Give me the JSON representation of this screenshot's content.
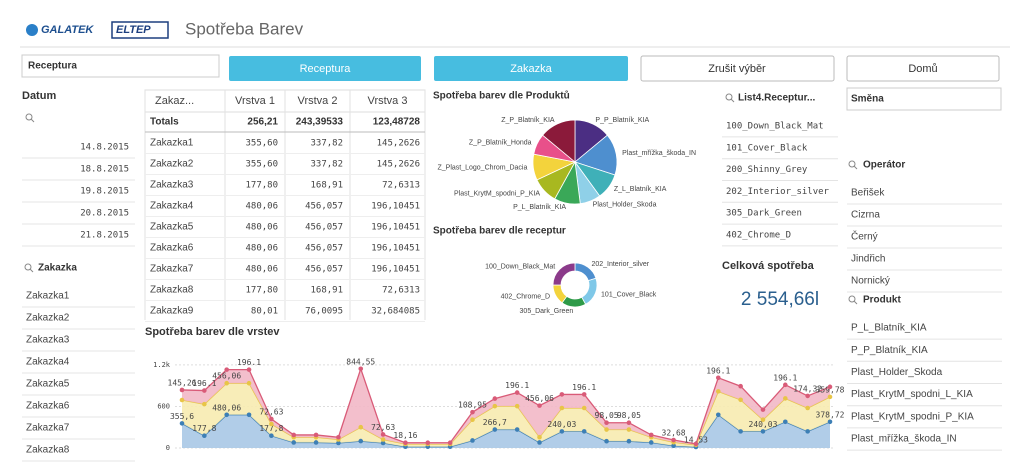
{
  "header": {
    "logos": [
      "GALATEK",
      "ELTEP"
    ],
    "title": "Spotřeba Barev"
  },
  "filters": {
    "field": "Receptura",
    "buttons": [
      "Receptura",
      "Zakazka",
      "Zrušit výběr",
      "Domů"
    ]
  },
  "datum": {
    "title": "Datum",
    "items": [
      "14.8.2015",
      "18.8.2015",
      "19.8.2015",
      "20.8.2015",
      "21.8.2015"
    ]
  },
  "zakazka": {
    "title": "Zakazka",
    "items": [
      "Zakazka1",
      "Zakazka2",
      "Zakazka3",
      "Zakazka4",
      "Zakazka5",
      "Zakazka6",
      "Zakazka7",
      "Zakazka8"
    ]
  },
  "table": {
    "columns": [
      "Zakaz...",
      "Vrstva 1",
      "Vrstva 2",
      "Vrstva 3"
    ],
    "totals": [
      "Totals",
      "256,21",
      "243,39533",
      "123,48728"
    ],
    "rows": [
      [
        "Zakazka1",
        "355,60",
        "337,82",
        "145,2626"
      ],
      [
        "Zakazka2",
        "355,60",
        "337,82",
        "145,2626"
      ],
      [
        "Zakazka3",
        "177,80",
        "168,91",
        "72,6313"
      ],
      [
        "Zakazka4",
        "480,06",
        "456,057",
        "196,10451"
      ],
      [
        "Zakazka5",
        "480,06",
        "456,057",
        "196,10451"
      ],
      [
        "Zakazka6",
        "480,06",
        "456,057",
        "196,10451"
      ],
      [
        "Zakazka7",
        "480,06",
        "456,057",
        "196,10451"
      ],
      [
        "Zakazka8",
        "177,80",
        "168,91",
        "72,6313"
      ],
      [
        "Zakazka9",
        "80,01",
        "76,0095",
        "32,684085"
      ]
    ]
  },
  "list4": {
    "title": "List4.Receptur...",
    "items": [
      "100_Down_Black_Mat",
      "101_Cover_Black",
      "200_Shinny_Grey",
      "202_Interior_silver",
      "305_Dark_Green",
      "402_Chrome_D"
    ]
  },
  "total": {
    "title": "Celková spotřeba",
    "value": "2 554,66l"
  },
  "smena": {
    "title": "Směna"
  },
  "operator": {
    "title": "Operátor",
    "items": [
      "Beřišek",
      "Cizrna",
      "Černý",
      "Jindřich",
      "Nornický"
    ]
  },
  "produkt": {
    "title": "Produkt",
    "items": [
      "P_L_Blatník_KIA",
      "P_P_Blatník_KIA",
      "Plast_Holder_Skoda",
      "Plast_KrytM_spodni_L_KIA",
      "Plast_KrytM_spodni_P_KIA",
      "Plast_mřížka_škoda_IN"
    ]
  },
  "chart_data": [
    {
      "type": "pie",
      "title": "Spotřeba barev dle Produktů",
      "categories": [
        "P_P_Blatník_KIA",
        "Plast_mřížka_škoda_IN",
        "Z_L_Blatník_KIA",
        "Plast_Holder_Skoda",
        "P_L_Blatník_KIA",
        "Plast_KrytM_spodni_P_KIA",
        "Z_Plast_Logo_Chrom_Dacia",
        "Z_P_Blatník_Honda",
        "Z_P_Blatník_KIA"
      ],
      "values": [
        14,
        16,
        10,
        8,
        10,
        10,
        10,
        8,
        14
      ],
      "colors": [
        "#4b2e83",
        "#4e8fcf",
        "#3fb0b8",
        "#8fd0e8",
        "#3aa858",
        "#a8b820",
        "#f3d33c",
        "#e8508a",
        "#8b1a3a"
      ]
    },
    {
      "type": "donut",
      "title": "Spotřeba barev dle receptur",
      "categories": [
        "202_Interior_silver",
        "101_Cover_Black",
        "305_Dark_Green",
        "402_Chrome_D",
        "100_Down_Black_Mat"
      ],
      "values": [
        20,
        22,
        18,
        15,
        25
      ],
      "colors": [
        "#4e8fcf",
        "#7fc8e8",
        "#2e9a48",
        "#f3d33c",
        "#8b3a8a"
      ]
    },
    {
      "type": "stacked-area",
      "title": "Spotřeba barev dle vrstev",
      "ylim": [
        0,
        1300
      ],
      "yticks": [
        0,
        600,
        {
          "value": 1200,
          "label": "1.2k"
        }
      ],
      "grid": true,
      "series": [
        {
          "color": "#3d7fb5",
          "fill": "#a9c8e6",
          "values": [
            355.6,
            177.8,
            480.06,
            480.06,
            177.8,
            80,
            80,
            72.63,
            100,
            72.63,
            18.16,
            18.16,
            18.16,
            108.95,
            266.7,
            266.7,
            80,
            240.03,
            240.03,
            98.05,
            98.05,
            80,
            32.68,
            14.53,
            480.06,
            240.03,
            240.03,
            378.72,
            240.03,
            378.72
          ],
          "value_labels": [
            "355,6",
            "177,8",
            "480,06",
            null,
            "177,8",
            null,
            null,
            null,
            null,
            null,
            null,
            null,
            null,
            null,
            "266,7",
            null,
            null,
            "240,03",
            null,
            null,
            null,
            null,
            null,
            "14,53",
            null,
            null,
            "240,03",
            null,
            null,
            "378,72"
          ]
        },
        {
          "color": "#e8c547",
          "fill": "#f7ebb0",
          "values": [
            337.82,
            456.06,
            456.06,
            456.06,
            168.91,
            76,
            76,
            50,
            200,
            50,
            40,
            40,
            40,
            300,
            337.82,
            337.82,
            76,
            337.82,
            337.82,
            168.91,
            168.91,
            76,
            50,
            30,
            337.82,
            456.06,
            168.91,
            337.82,
            337.82,
            359.78
          ],
          "value_labels": [
            null,
            null,
            "456,06",
            null,
            null,
            null,
            null,
            null,
            null,
            null,
            null,
            null,
            null,
            null,
            null,
            null,
            null,
            null,
            null,
            null,
            null,
            null,
            null,
            null,
            null,
            null,
            null,
            null,
            null,
            "359,78"
          ]
        },
        {
          "color": "#d95b78",
          "fill": "#f2b8c6",
          "values": [
            145.26,
            196.1,
            196.1,
            196.1,
            72.63,
            32.68,
            32.68,
            32.68,
            844.55,
            72.63,
            18.16,
            18.16,
            18.16,
            108.95,
            108.95,
            196.1,
            456.06,
            196.1,
            196.1,
            98.05,
            98.05,
            32.68,
            32.68,
            14.53,
            196.1,
            196.1,
            145.26,
            196.1,
            174.32,
            145.26
          ],
          "value_labels": [
            "145,26",
            "196.1",
            null,
            "196.1",
            "72,63",
            null,
            null,
            null,
            "844,55",
            "72,63",
            "18,16",
            null,
            null,
            "108,95",
            null,
            "196.1",
            "456,06",
            null,
            "196.1",
            "98,05",
            "98,05",
            null,
            "32,68",
            null,
            "196.1",
            null,
            null,
            "196.1",
            "174,32",
            null
          ]
        }
      ]
    }
  ]
}
